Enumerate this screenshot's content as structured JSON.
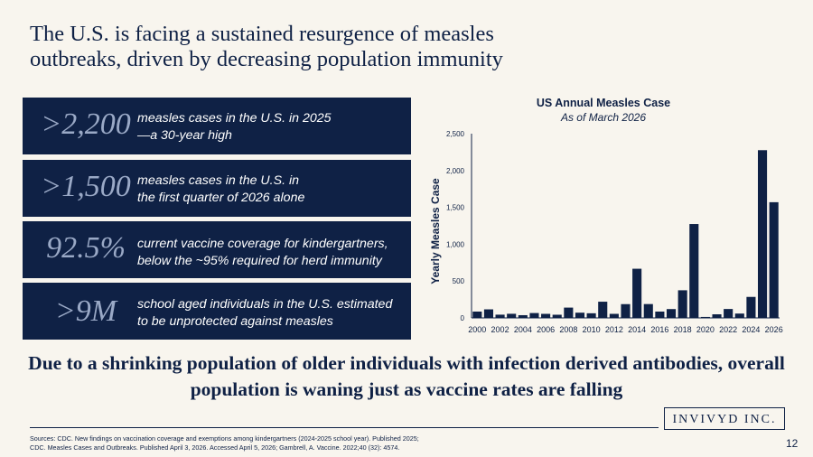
{
  "title": "The U.S. is facing a sustained resurgence of measles outbreaks, driven by decreasing population immunity",
  "stats": [
    {
      "value": ">2,200",
      "line1": "measles cases in the U.S. in 2025",
      "line2": "—a 30-year high"
    },
    {
      "value": ">1,500",
      "line1": "measles cases in the U.S. in",
      "line2": "the first quarter of 2026 alone"
    },
    {
      "value": "92.5%",
      "line1": "current vaccine coverage for kindergartners,",
      "line2": "below the ~95% required for herd immunity"
    },
    {
      "value": ">9M",
      "line1": "school aged individuals in the U.S. estimated",
      "line2": "to be unprotected against measles"
    }
  ],
  "headline": "Due to a shrinking population of older individuals with infection derived antibodies, overall population is waning just as vaccine rates are falling",
  "brand": "INVIVYD INC.",
  "sources": {
    "line1": "Sources: CDC. New findings on vaccination coverage and exemptions among kindergartners (2024-2025 school year). Published 2025;",
    "line2": "CDC. Measles Cases and Outbreaks. Published April 3, 2026. Accessed April 5, 2026; Gambrell, A. Vaccine. 2022;40 (32): 4574."
  },
  "page_number": "12",
  "colors": {
    "navy": "#0f2145",
    "background": "#f8f5ee",
    "stat_value": "#9aa9c6"
  },
  "chart_data": {
    "type": "bar",
    "title": "US Annual Measles Case",
    "subtitle": "As of March 2026",
    "ylabel": "Yearly Measles Case",
    "xlabel": "",
    "ylim": [
      0,
      2500
    ],
    "yticks": [
      0,
      500,
      1000,
      1500,
      2000,
      2500
    ],
    "ytick_labels": [
      "0",
      "500",
      "1,000",
      "1,500",
      "2,000",
      "2,500"
    ],
    "xtick_labels": [
      "2000",
      "2002",
      "2004",
      "2006",
      "2008",
      "2010",
      "2012",
      "2014",
      "2016",
      "2018",
      "2020",
      "2022",
      "2024",
      "2026"
    ],
    "categories": [
      "2000",
      "2001",
      "2002",
      "2003",
      "2004",
      "2005",
      "2006",
      "2007",
      "2008",
      "2009",
      "2010",
      "2011",
      "2012",
      "2013",
      "2014",
      "2015",
      "2016",
      "2017",
      "2018",
      "2019",
      "2020",
      "2021",
      "2022",
      "2023",
      "2024",
      "2025",
      "2026"
    ],
    "values": [
      86,
      116,
      44,
      56,
      37,
      66,
      55,
      43,
      140,
      71,
      63,
      220,
      55,
      187,
      667,
      188,
      86,
      120,
      375,
      1274,
      13,
      49,
      121,
      59,
      285,
      2276,
      1570
    ],
    "grid": false,
    "legend": "none"
  }
}
